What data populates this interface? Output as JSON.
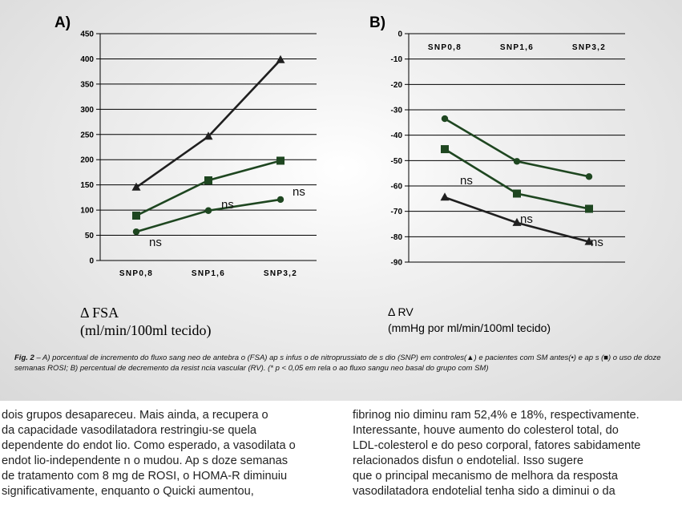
{
  "chart_data": [
    {
      "type": "line",
      "panel_label": "A)",
      "categories": [
        "SNP0,8",
        "SNP1,6",
        "SNP3,2"
      ],
      "yticks": [
        "450",
        "400",
        "350",
        "300",
        "250",
        "200",
        "150",
        "100",
        "50",
        "0"
      ],
      "ylim": [
        0,
        450
      ],
      "grid": true,
      "series": [
        {
          "marker": "triangle",
          "color": "#1f1f1f",
          "values": [
            145,
            246,
            398
          ]
        },
        {
          "marker": "square",
          "color": "#1e4620",
          "values": [
            89,
            159,
            198
          ]
        },
        {
          "marker": "circle",
          "color": "#1e4620",
          "values": [
            57,
            99,
            121
          ]
        }
      ],
      "annotations": [
        "ns",
        "ns",
        "ns"
      ],
      "xlabel_line1": "Δ FSA",
      "xlabel_line2": "(ml/min/100ml tecido)"
    },
    {
      "type": "line",
      "panel_label": "B)",
      "categories": [
        "SNP0,8",
        "SNP1,6",
        "SNP3,2"
      ],
      "yticks": [
        "0",
        "-10",
        "-20",
        "-30",
        "-40",
        "-50",
        "-60",
        "-70",
        "-80",
        "-90"
      ],
      "ylim": [
        -90,
        0
      ],
      "grid": true,
      "series": [
        {
          "marker": "circle",
          "color": "#1e4620",
          "values": [
            -33.5,
            -50.3,
            -56.3
          ]
        },
        {
          "marker": "square",
          "color": "#1e4620",
          "values": [
            -45.5,
            -63,
            -69
          ]
        },
        {
          "marker": "triangle",
          "color": "#1f1f1f",
          "values": [
            -64.5,
            -74.5,
            -82
          ]
        }
      ],
      "annotations": [
        "ns",
        "ns",
        "ns"
      ],
      "xlabel_line1": "Δ RV",
      "xlabel_line2": "(mmHg por ml/min/100ml tecido)"
    }
  ],
  "caption": {
    "fig_label": "Fig. 2",
    "text": " – A) porcentual de incremento do fluxo sang   neo de antebra  o (FSA) ap  s infus  o de nitroprussiato de s  dio (SNP) em controles(▲) e pacientes com SM antes(•) e ap  s (■) o uso de doze semanas ROSI; B) percentual de decremento da resist  ncia vascular (RV). (* p < 0,05 em rela    o ao fluxo sangu neo basal do grupo com SM)"
  },
  "body_text": {
    "left": [
      "dois grupos desapareceu. Mais ainda, a recupera   o",
      "da capacidade vasodilatadora restringiu-se   quela",
      "dependente do endot  lio. Como esperado, a vasodilata   o",
      "endot  lio-independente n  o mudou. Ap  s doze semanas",
      "de tratamento com 8 mg de ROSI, o HOMA-R diminuiu",
      "significativamente, enquanto o Quicki aumentou,"
    ],
    "right": [
      "fibrinog  nio diminu ram 52,4% e 18%, respectivamente.",
      "Interessante, houve aumento do colesterol total, do",
      "LDL-colesterol e do peso corporal, fatores sabidamente",
      "relacionados      disfun    o endotelial. Isso sugere",
      "que o principal mecanismo de melhora da resposta",
      "vasodilatadora endotelial tenha sido a diminui   o da"
    ]
  }
}
